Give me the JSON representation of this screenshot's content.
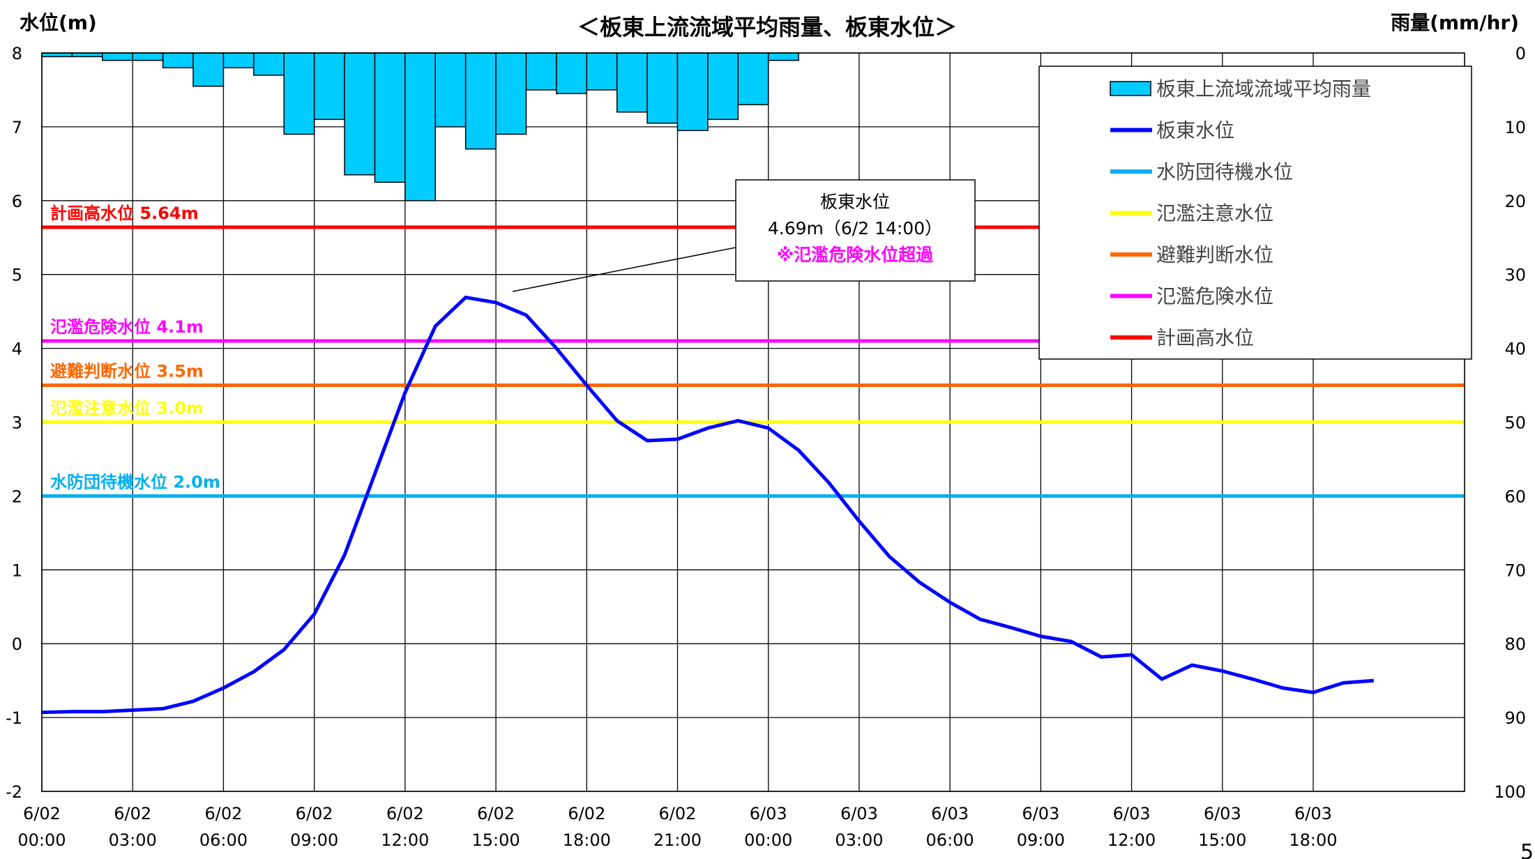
{
  "chart_data": {
    "type": "bar+line",
    "title": "＜板東上流流域平均雨量、板東水位＞",
    "y_left_label": "水位(m)",
    "y_right_label": "雨量(mm/hr)",
    "y_left_range": [
      -2,
      8
    ],
    "y_left_ticks": [
      "8",
      "7",
      "6",
      "5",
      "4",
      "3",
      "2",
      "1",
      "0",
      "-1",
      "-2"
    ],
    "y_right_range": [
      0,
      100
    ],
    "y_right_inverted": true,
    "y_right_ticks": [
      "0",
      "10",
      "20",
      "30",
      "40",
      "50",
      "60",
      "70",
      "80",
      "90",
      "100"
    ],
    "x_ticks": [
      [
        "6/02",
        "00:00"
      ],
      [
        "6/02",
        "03:00"
      ],
      [
        "6/02",
        "06:00"
      ],
      [
        "6/02",
        "09:00"
      ],
      [
        "6/02",
        "12:00"
      ],
      [
        "6/02",
        "15:00"
      ],
      [
        "6/02",
        "18:00"
      ],
      [
        "6/02",
        "21:00"
      ],
      [
        "6/03",
        "00:00"
      ],
      [
        "6/03",
        "03:00"
      ],
      [
        "6/03",
        "06:00"
      ],
      [
        "6/03",
        "09:00"
      ],
      [
        "6/03",
        "12:00"
      ],
      [
        "6/03",
        "15:00"
      ],
      [
        "6/03",
        "18:00"
      ]
    ],
    "rainfall_mm_hr": [
      0.5,
      0.5,
      1,
      1,
      2,
      4.5,
      2,
      3,
      11,
      9,
      16.5,
      17.5,
      20,
      10,
      13,
      11,
      5,
      5.5,
      5,
      8,
      9.5,
      10.5,
      9,
      7,
      1
    ],
    "water_level_m": [
      -0.93,
      -0.92,
      -0.92,
      -0.9,
      -0.88,
      -0.78,
      -0.6,
      -0.38,
      -0.08,
      0.4,
      1.2,
      2.3,
      3.4,
      4.3,
      4.69,
      4.62,
      4.45,
      4.0,
      3.5,
      3.02,
      2.75,
      2.77,
      2.92,
      3.02,
      2.92,
      2.62,
      2.18,
      1.66,
      1.18,
      0.83,
      0.56,
      0.33,
      0.22,
      0.1,
      0.03,
      -0.18,
      -0.15,
      -0.48,
      -0.29,
      -0.37,
      -0.48,
      -0.6,
      -0.66,
      -0.53,
      -0.5
    ],
    "grid": true,
    "legend_position": "top-right",
    "reference_levels": [
      {
        "label": "計画高水位",
        "value": 5.64,
        "value_text": "計画高水位 5.64m",
        "color": "#ff0000"
      },
      {
        "label": "氾濫危険水位",
        "value": 4.1,
        "value_text": "氾濫危険水位 4.1m",
        "color": "#ff00ff"
      },
      {
        "label": "避難判断水位",
        "value": 3.5,
        "value_text": "避難判断水位 3.5m",
        "color": "#ff6600"
      },
      {
        "label": "氾濫注意水位",
        "value": 3.0,
        "value_text": "氾濫注意水位 3.0m",
        "color": "#ffff00"
      },
      {
        "label": "水防団待機水位",
        "value": 2.0,
        "value_text": "水防団待機水位 2.0m",
        "color": "#00b0f0"
      }
    ],
    "legend": [
      {
        "label": "板東上流域流域平均雨量",
        "kind": "bar",
        "color": "#00ccff"
      },
      {
        "label": "板東水位",
        "kind": "line",
        "color": "#0000ff"
      },
      {
        "label": "水防団待機水位",
        "kind": "line",
        "color": "#00b0f0"
      },
      {
        "label": "氾濫注意水位",
        "kind": "line",
        "color": "#ffff00"
      },
      {
        "label": "避難判断水位",
        "kind": "line",
        "color": "#ff6600"
      },
      {
        "label": "氾濫危険水位",
        "kind": "line",
        "color": "#ff00ff"
      },
      {
        "label": "計画高水位",
        "kind": "line",
        "color": "#ff0000"
      }
    ],
    "annotation": {
      "line1": "板東水位",
      "line2": "4.69m（6/2 14:00）",
      "line3": "※氾濫危険水位超過",
      "point": {
        "x_hour": 14,
        "y": 4.69
      }
    }
  },
  "page_number": "5"
}
